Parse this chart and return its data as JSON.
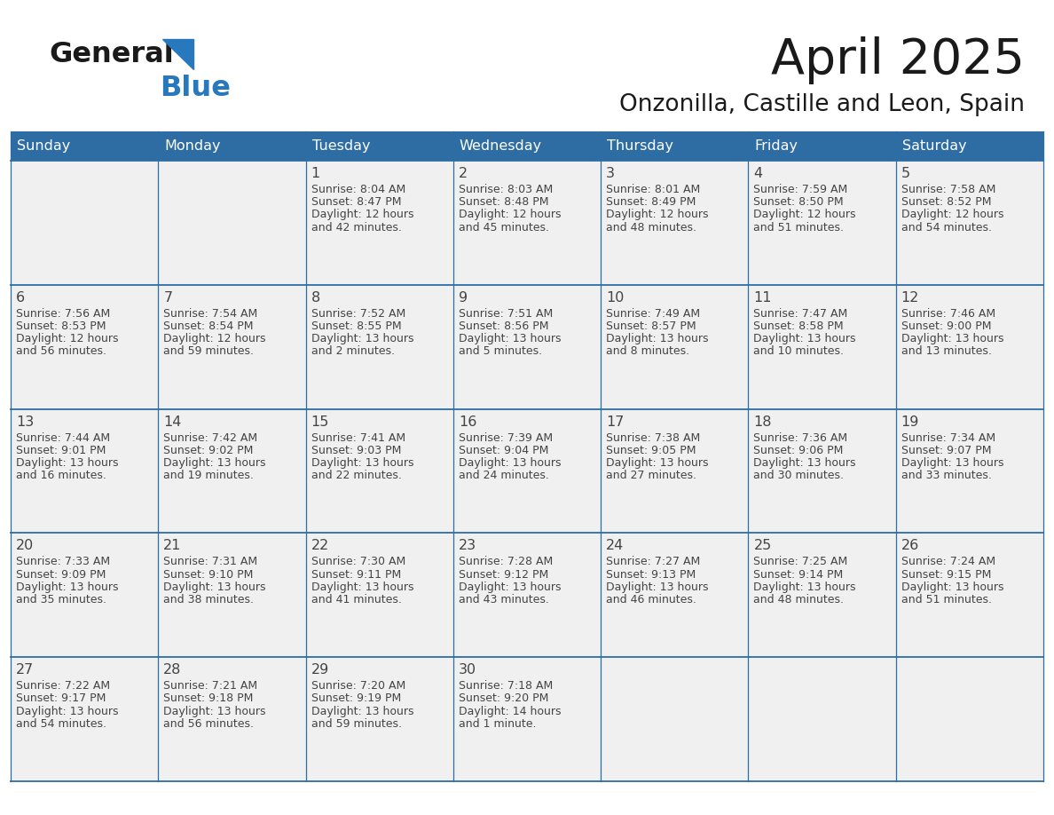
{
  "title": "April 2025",
  "subtitle": "Onzonilla, Castille and Leon, Spain",
  "days_of_week": [
    "Sunday",
    "Monday",
    "Tuesday",
    "Wednesday",
    "Thursday",
    "Friday",
    "Saturday"
  ],
  "header_bg": "#2E6DA4",
  "header_text": "#FFFFFF",
  "cell_bg": "#F0F0F0",
  "grid_line_color": "#2E6DA4",
  "text_color": "#444444",
  "title_color": "#1a1a1a",
  "logo_general_color": "#1a1a1a",
  "logo_blue_color": "#2878BE",
  "weeks": [
    [
      {
        "day": null,
        "sunrise": null,
        "sunset": null,
        "daylight": null
      },
      {
        "day": null,
        "sunrise": null,
        "sunset": null,
        "daylight": null
      },
      {
        "day": 1,
        "sunrise": "8:04 AM",
        "sunset": "8:47 PM",
        "daylight": "12 hours and 42 minutes."
      },
      {
        "day": 2,
        "sunrise": "8:03 AM",
        "sunset": "8:48 PM",
        "daylight": "12 hours and 45 minutes."
      },
      {
        "day": 3,
        "sunrise": "8:01 AM",
        "sunset": "8:49 PM",
        "daylight": "12 hours and 48 minutes."
      },
      {
        "day": 4,
        "sunrise": "7:59 AM",
        "sunset": "8:50 PM",
        "daylight": "12 hours and 51 minutes."
      },
      {
        "day": 5,
        "sunrise": "7:58 AM",
        "sunset": "8:52 PM",
        "daylight": "12 hours and 54 minutes."
      }
    ],
    [
      {
        "day": 6,
        "sunrise": "7:56 AM",
        "sunset": "8:53 PM",
        "daylight": "12 hours and 56 minutes."
      },
      {
        "day": 7,
        "sunrise": "7:54 AM",
        "sunset": "8:54 PM",
        "daylight": "12 hours and 59 minutes."
      },
      {
        "day": 8,
        "sunrise": "7:52 AM",
        "sunset": "8:55 PM",
        "daylight": "13 hours and 2 minutes."
      },
      {
        "day": 9,
        "sunrise": "7:51 AM",
        "sunset": "8:56 PM",
        "daylight": "13 hours and 5 minutes."
      },
      {
        "day": 10,
        "sunrise": "7:49 AM",
        "sunset": "8:57 PM",
        "daylight": "13 hours and 8 minutes."
      },
      {
        "day": 11,
        "sunrise": "7:47 AM",
        "sunset": "8:58 PM",
        "daylight": "13 hours and 10 minutes."
      },
      {
        "day": 12,
        "sunrise": "7:46 AM",
        "sunset": "9:00 PM",
        "daylight": "13 hours and 13 minutes."
      }
    ],
    [
      {
        "day": 13,
        "sunrise": "7:44 AM",
        "sunset": "9:01 PM",
        "daylight": "13 hours and 16 minutes."
      },
      {
        "day": 14,
        "sunrise": "7:42 AM",
        "sunset": "9:02 PM",
        "daylight": "13 hours and 19 minutes."
      },
      {
        "day": 15,
        "sunrise": "7:41 AM",
        "sunset": "9:03 PM",
        "daylight": "13 hours and 22 minutes."
      },
      {
        "day": 16,
        "sunrise": "7:39 AM",
        "sunset": "9:04 PM",
        "daylight": "13 hours and 24 minutes."
      },
      {
        "day": 17,
        "sunrise": "7:38 AM",
        "sunset": "9:05 PM",
        "daylight": "13 hours and 27 minutes."
      },
      {
        "day": 18,
        "sunrise": "7:36 AM",
        "sunset": "9:06 PM",
        "daylight": "13 hours and 30 minutes."
      },
      {
        "day": 19,
        "sunrise": "7:34 AM",
        "sunset": "9:07 PM",
        "daylight": "13 hours and 33 minutes."
      }
    ],
    [
      {
        "day": 20,
        "sunrise": "7:33 AM",
        "sunset": "9:09 PM",
        "daylight": "13 hours and 35 minutes."
      },
      {
        "day": 21,
        "sunrise": "7:31 AM",
        "sunset": "9:10 PM",
        "daylight": "13 hours and 38 minutes."
      },
      {
        "day": 22,
        "sunrise": "7:30 AM",
        "sunset": "9:11 PM",
        "daylight": "13 hours and 41 minutes."
      },
      {
        "day": 23,
        "sunrise": "7:28 AM",
        "sunset": "9:12 PM",
        "daylight": "13 hours and 43 minutes."
      },
      {
        "day": 24,
        "sunrise": "7:27 AM",
        "sunset": "9:13 PM",
        "daylight": "13 hours and 46 minutes."
      },
      {
        "day": 25,
        "sunrise": "7:25 AM",
        "sunset": "9:14 PM",
        "daylight": "13 hours and 48 minutes."
      },
      {
        "day": 26,
        "sunrise": "7:24 AM",
        "sunset": "9:15 PM",
        "daylight": "13 hours and 51 minutes."
      }
    ],
    [
      {
        "day": 27,
        "sunrise": "7:22 AM",
        "sunset": "9:17 PM",
        "daylight": "13 hours and 54 minutes."
      },
      {
        "day": 28,
        "sunrise": "7:21 AM",
        "sunset": "9:18 PM",
        "daylight": "13 hours and 56 minutes."
      },
      {
        "day": 29,
        "sunrise": "7:20 AM",
        "sunset": "9:19 PM",
        "daylight": "13 hours and 59 minutes."
      },
      {
        "day": 30,
        "sunrise": "7:18 AM",
        "sunset": "9:20 PM",
        "daylight": "14 hours and 1 minute."
      },
      {
        "day": null,
        "sunrise": null,
        "sunset": null,
        "daylight": null
      },
      {
        "day": null,
        "sunrise": null,
        "sunset": null,
        "daylight": null
      },
      {
        "day": null,
        "sunrise": null,
        "sunset": null,
        "daylight": null
      }
    ]
  ],
  "figsize": [
    11.88,
    9.18
  ],
  "dpi": 100
}
